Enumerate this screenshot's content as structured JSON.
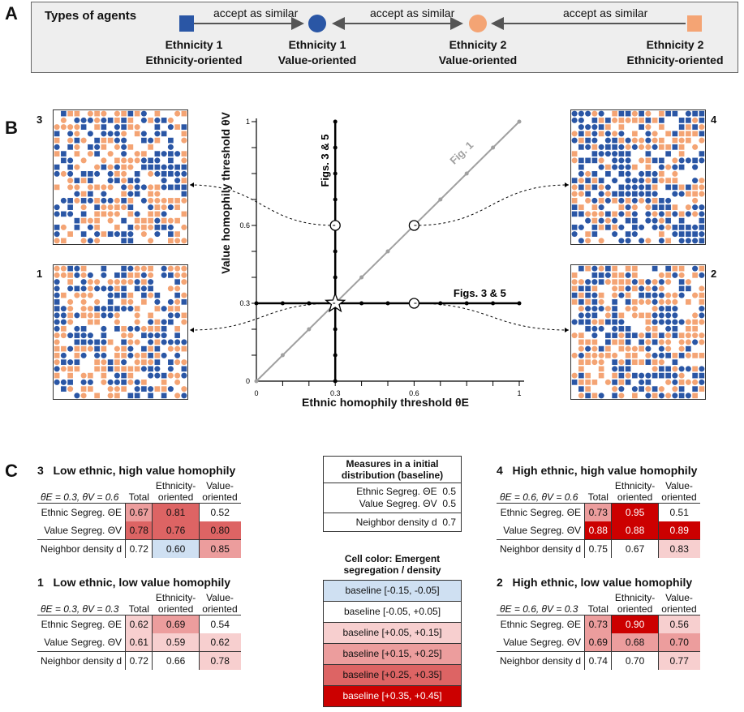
{
  "panels": {
    "a": "A",
    "b": "B",
    "c": "C"
  },
  "colors": {
    "ethnicity1": "#2a56a5",
    "ethnicity2": "#f4a474",
    "diag": "#a0a0a0"
  },
  "agents": {
    "title": "Types of agents",
    "edge_label": "accept as similar",
    "items": [
      {
        "line1": "Ethnicity 1",
        "line2": "Ethnicity-oriented",
        "shape": "square-icon"
      },
      {
        "line1": "Ethnicity 1",
        "line2": "Value-oriented",
        "shape": "circle-icon"
      },
      {
        "line1": "Ethnicity 2",
        "line2": "Value-oriented",
        "shape": "circle-icon"
      },
      {
        "line1": "Ethnicity 2",
        "line2": "Ethnicity-oriented",
        "shape": "square-icon"
      }
    ]
  },
  "chart_data": {
    "type": "scatter",
    "xlabel": "Ethnic homophily threshold θE",
    "ylabel": "Value homophily threshold θV",
    "xlim": [
      0,
      1
    ],
    "ylim": [
      0,
      1
    ],
    "x_ticks": [
      "0",
      "0.3",
      "0.6",
      "1"
    ],
    "y_ticks": [
      "0",
      "0.3",
      "0.6",
      "1"
    ],
    "lines": [
      {
        "label": "Fig. 1",
        "from": [
          0,
          0
        ],
        "to": [
          1,
          1
        ]
      },
      {
        "label": "Figs. 3 & 5",
        "from": [
          0.3,
          0
        ],
        "to": [
          0.3,
          1
        ]
      },
      {
        "label": "Figs. 3 & 5",
        "from": [
          0,
          0.3
        ],
        "to": [
          1,
          0.3
        ]
      }
    ],
    "marked_points": [
      {
        "x": 0.3,
        "y": 0.3,
        "marker": "star",
        "grid": "1"
      },
      {
        "x": 0.6,
        "y": 0.3,
        "marker": "circle",
        "grid": "2"
      },
      {
        "x": 0.3,
        "y": 0.6,
        "marker": "circle",
        "grid": "3"
      },
      {
        "x": 0.6,
        "y": 0.6,
        "marker": "circle",
        "grid": "4"
      }
    ]
  },
  "grids": {
    "g1": "1",
    "g2": "2",
    "g3": "3",
    "g4": "4"
  },
  "tables": {
    "col_total": "Total",
    "col_eth": "Ethnicity-\noriented",
    "col_val": "Value-\noriented",
    "row_e": "Ethnic Segreg. ΘE",
    "row_v": "Value Segreg. ΘV",
    "row_d": "Neighbor density d",
    "t3": {
      "num": "3",
      "title": "Low ethnic, high value homophily",
      "params": "θE = 0.3, θV = 0.6",
      "e": [
        "0.67",
        "0.81",
        "0.52"
      ],
      "v": [
        "0.78",
        "0.76",
        "0.80"
      ],
      "d": [
        "0.72",
        "0.60",
        "0.85"
      ]
    },
    "t1": {
      "num": "1",
      "title": "Low ethnic, low value homophily",
      "params": "θE = 0.3, θV = 0.3",
      "e": [
        "0.62",
        "0.69",
        "0.54"
      ],
      "v": [
        "0.61",
        "0.59",
        "0.62"
      ],
      "d": [
        "0.72",
        "0.66",
        "0.78"
      ]
    },
    "t4": {
      "num": "4",
      "title": "High ethnic, high value homophily",
      "params": "θE = 0.6, θV = 0.6",
      "e": [
        "0.73",
        "0.95",
        "0.51"
      ],
      "v": [
        "0.88",
        "0.88",
        "0.89"
      ],
      "d": [
        "0.75",
        "0.67",
        "0.83"
      ]
    },
    "t2": {
      "num": "2",
      "title": "High ethnic, low value homophily",
      "params": "θE = 0.6, θV = 0.3",
      "e": [
        "0.73",
        "0.90",
        "0.56"
      ],
      "v": [
        "0.69",
        "0.68",
        "0.70"
      ],
      "d": [
        "0.74",
        "0.70",
        "0.77"
      ]
    }
  },
  "baseline": {
    "title": "Measures in a initial distribution (baseline)",
    "e_label": "Ethnic Segreg. ΘE",
    "e_val": "0.5",
    "v_label": "Value Segreg. ΘV",
    "v_val": "0.5",
    "d_label": "Neighbor density d",
    "d_val": "0.7"
  },
  "legend": {
    "title": "Cell color: Emergent segregation / density",
    "items": [
      "baseline [-0.15, -0.05]",
      "baseline [-0.05, +0.05]",
      "baseline [+0.05, +0.15]",
      "baseline [+0.15, +0.25]",
      "baseline [+0.25, +0.35]",
      "baseline [+0.35, +0.45]"
    ]
  }
}
